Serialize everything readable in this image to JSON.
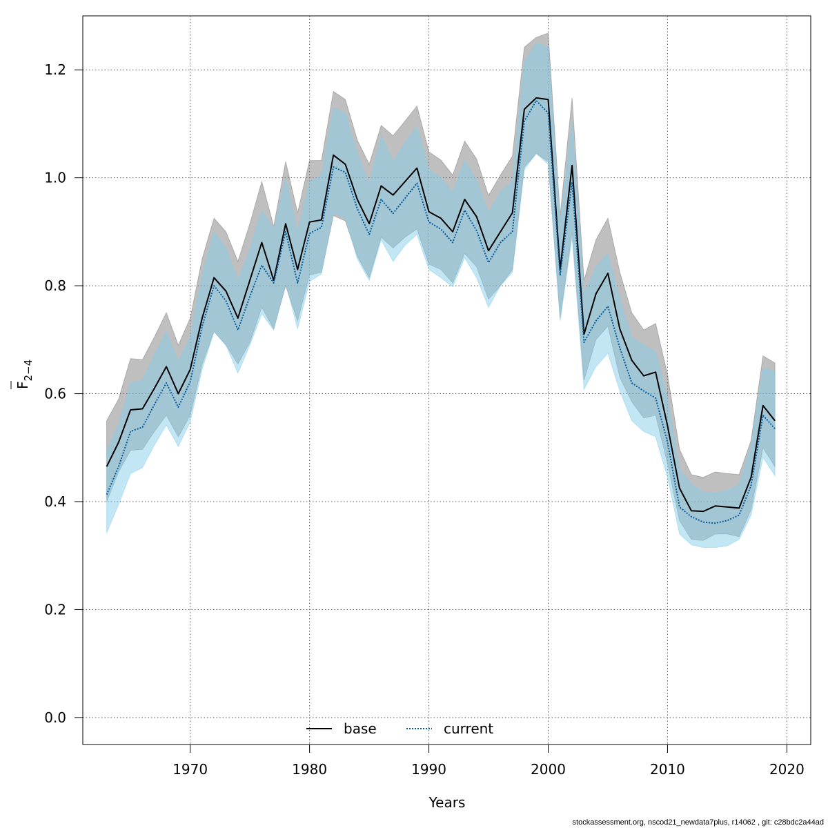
{
  "chart_data": {
    "type": "line",
    "xlabel": "Years",
    "ylabel": {
      "base": "F",
      "sub": "2−4"
    },
    "xlim": [
      1961,
      2022
    ],
    "ylim": [
      -0.05,
      1.3
    ],
    "x_ticks": [
      1970,
      1980,
      1990,
      2000,
      2010,
      2020
    ],
    "y_ticks": [
      0.0,
      0.2,
      0.4,
      0.6,
      0.8,
      1.0,
      1.2
    ],
    "y_tick_labels": [
      "0.0",
      "0.2",
      "0.4",
      "0.6",
      "0.8",
      "1.0",
      "1.2"
    ],
    "grid": true,
    "legend_position": "bottom-center",
    "x": [
      1963,
      1964,
      1965,
      1966,
      1967,
      1968,
      1969,
      1970,
      1971,
      1972,
      1973,
      1974,
      1975,
      1976,
      1977,
      1978,
      1979,
      1980,
      1981,
      1982,
      1983,
      1984,
      1985,
      1986,
      1987,
      1988,
      1989,
      1990,
      1991,
      1992,
      1993,
      1994,
      1995,
      1996,
      1997,
      1998,
      1999,
      2000,
      2001,
      2002,
      2003,
      2004,
      2005,
      2006,
      2007,
      2008,
      2009,
      2010,
      2011,
      2012,
      2013,
      2014,
      2015,
      2016,
      2017,
      2018,
      2019
    ],
    "series": [
      {
        "name": "base",
        "color": "#000000",
        "line_style": "solid",
        "band_color": "#7f7f7f",
        "values": [
          0.465,
          0.51,
          0.57,
          0.572,
          0.61,
          0.65,
          0.6,
          0.645,
          0.74,
          0.815,
          0.79,
          0.74,
          0.81,
          0.88,
          0.81,
          0.915,
          0.83,
          0.918,
          0.922,
          1.042,
          1.025,
          0.96,
          0.915,
          0.985,
          0.968,
          0.993,
          1.018,
          0.937,
          0.925,
          0.9,
          0.96,
          0.928,
          0.865,
          0.9,
          0.935,
          1.127,
          1.148,
          1.145,
          0.83,
          1.023,
          0.71,
          0.785,
          0.823,
          0.72,
          0.662,
          0.633,
          0.64,
          0.54,
          0.425,
          0.383,
          0.382,
          0.392,
          0.39,
          0.388,
          0.445,
          0.578,
          0.55
        ],
        "lower": [
          0.4,
          0.455,
          0.495,
          0.497,
          0.53,
          0.56,
          0.52,
          0.56,
          0.655,
          0.715,
          0.69,
          0.655,
          0.695,
          0.76,
          0.72,
          0.8,
          0.735,
          0.82,
          0.825,
          0.93,
          0.92,
          0.855,
          0.815,
          0.89,
          0.87,
          0.89,
          0.905,
          0.84,
          0.83,
          0.805,
          0.86,
          0.835,
          0.775,
          0.8,
          0.83,
          1.02,
          1.045,
          1.03,
          0.74,
          0.9,
          0.625,
          0.7,
          0.725,
          0.63,
          0.585,
          0.555,
          0.56,
          0.47,
          0.365,
          0.33,
          0.328,
          0.34,
          0.34,
          0.335,
          0.385,
          0.5,
          0.465
        ],
        "upper": [
          0.55,
          0.59,
          0.665,
          0.663,
          0.705,
          0.75,
          0.69,
          0.74,
          0.85,
          0.925,
          0.9,
          0.845,
          0.915,
          0.993,
          0.91,
          1.03,
          0.935,
          1.032,
          1.032,
          1.16,
          1.145,
          1.07,
          1.025,
          1.097,
          1.078,
          1.105,
          1.133,
          1.048,
          1.033,
          1.005,
          1.068,
          1.035,
          0.967,
          1.005,
          1.04,
          1.242,
          1.26,
          1.268,
          0.93,
          1.148,
          0.81,
          0.885,
          0.925,
          0.825,
          0.75,
          0.718,
          0.73,
          0.635,
          0.497,
          0.45,
          0.445,
          0.455,
          0.452,
          0.45,
          0.513,
          0.67,
          0.657
        ]
      },
      {
        "name": "current",
        "color": "#005a9c",
        "line_style": "dotted",
        "band_color": "#87ceeb",
        "values": [
          0.413,
          0.465,
          0.53,
          0.538,
          0.58,
          0.62,
          0.575,
          0.622,
          0.725,
          0.8,
          0.772,
          0.718,
          0.78,
          0.838,
          0.805,
          0.9,
          0.805,
          0.897,
          0.908,
          1.02,
          1.01,
          0.943,
          0.895,
          0.96,
          0.934,
          0.962,
          0.99,
          0.918,
          0.905,
          0.88,
          0.94,
          0.902,
          0.843,
          0.88,
          0.9,
          1.105,
          1.143,
          1.12,
          0.82,
          0.992,
          0.695,
          0.735,
          0.762,
          0.685,
          0.62,
          0.605,
          0.592,
          0.51,
          0.39,
          0.372,
          0.362,
          0.36,
          0.365,
          0.375,
          0.43,
          0.56,
          0.535
        ],
        "lower": [
          0.342,
          0.395,
          0.452,
          0.463,
          0.505,
          0.542,
          0.502,
          0.548,
          0.645,
          0.715,
          0.69,
          0.638,
          0.69,
          0.748,
          0.718,
          0.805,
          0.72,
          0.808,
          0.822,
          0.935,
          0.925,
          0.85,
          0.81,
          0.885,
          0.845,
          0.875,
          0.895,
          0.83,
          0.815,
          0.798,
          0.852,
          0.815,
          0.76,
          0.8,
          0.825,
          1.015,
          1.045,
          1.025,
          0.735,
          0.89,
          0.608,
          0.65,
          0.675,
          0.605,
          0.55,
          0.53,
          0.52,
          0.445,
          0.34,
          0.32,
          0.315,
          0.315,
          0.318,
          0.33,
          0.375,
          0.482,
          0.448
        ],
        "upper": [
          0.495,
          0.545,
          0.62,
          0.625,
          0.672,
          0.715,
          0.66,
          0.705,
          0.82,
          0.9,
          0.87,
          0.81,
          0.868,
          0.94,
          0.905,
          1.0,
          0.9,
          0.993,
          1.005,
          1.13,
          1.12,
          1.045,
          0.99,
          1.078,
          1.03,
          1.065,
          1.095,
          1.015,
          1.0,
          0.973,
          1.033,
          0.995,
          0.935,
          0.975,
          0.993,
          1.215,
          1.25,
          1.242,
          0.915,
          1.105,
          0.785,
          0.835,
          0.86,
          0.775,
          0.705,
          0.69,
          0.678,
          0.59,
          0.46,
          0.433,
          0.418,
          0.417,
          0.42,
          0.432,
          0.505,
          0.648,
          0.642
        ]
      }
    ]
  },
  "footer": "stockassessment.org, nscod21_newdata7plus, r14062 , git: c28bdc2a44ad"
}
